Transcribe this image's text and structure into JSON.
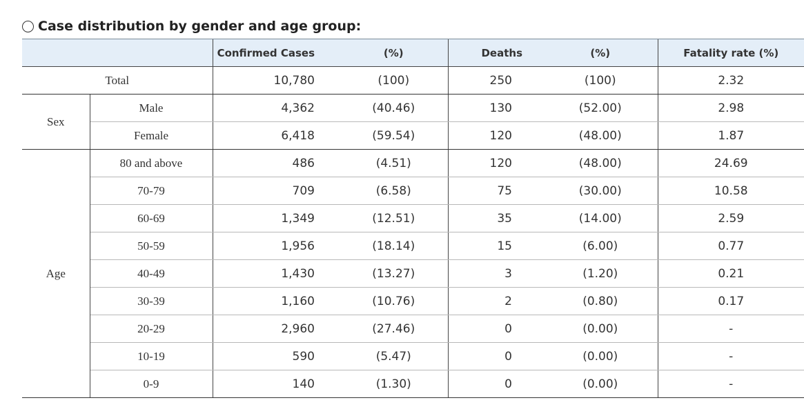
{
  "title": "Case distribution by gender and age group:",
  "headers": {
    "confirmed": "Confirmed Cases",
    "confirmed_pct": "(%)",
    "deaths": "Deaths",
    "deaths_pct": "(%)",
    "fatality": "Fatality rate (%)"
  },
  "groups": {
    "sex": "Sex",
    "age": "Age"
  },
  "rows": {
    "total": {
      "label": "Total",
      "cases": "10,780",
      "cases_pct": "(100)",
      "deaths": "250",
      "deaths_pct": "(100)",
      "fatality": "2.32"
    },
    "male": {
      "label": "Male",
      "cases": "4,362",
      "cases_pct": "(40.46)",
      "deaths": "130",
      "deaths_pct": "(52.00)",
      "fatality": "2.98"
    },
    "female": {
      "label": "Female",
      "cases": "6,418",
      "cases_pct": "(59.54)",
      "deaths": "120",
      "deaths_pct": "(48.00)",
      "fatality": "1.87"
    },
    "a80": {
      "label": "80 and above",
      "cases": "486",
      "cases_pct": "(4.51)",
      "deaths": "120",
      "deaths_pct": "(48.00)",
      "fatality": "24.69"
    },
    "a70": {
      "label": "70-79",
      "cases": "709",
      "cases_pct": "(6.58)",
      "deaths": "75",
      "deaths_pct": "(30.00)",
      "fatality": "10.58"
    },
    "a60": {
      "label": "60-69",
      "cases": "1,349",
      "cases_pct": "(12.51)",
      "deaths": "35",
      "deaths_pct": "(14.00)",
      "fatality": "2.59"
    },
    "a50": {
      "label": "50-59",
      "cases": "1,956",
      "cases_pct": "(18.14)",
      "deaths": "15",
      "deaths_pct": "(6.00)",
      "fatality": "0.77"
    },
    "a40": {
      "label": "40-49",
      "cases": "1,430",
      "cases_pct": "(13.27)",
      "deaths": "3",
      "deaths_pct": "(1.20)",
      "fatality": "0.21"
    },
    "a30": {
      "label": "30-39",
      "cases": "1,160",
      "cases_pct": "(10.76)",
      "deaths": "2",
      "deaths_pct": "(0.80)",
      "fatality": "0.17"
    },
    "a20": {
      "label": "20-29",
      "cases": "2,960",
      "cases_pct": "(27.46)",
      "deaths": "0",
      "deaths_pct": "(0.00)",
      "fatality": "-"
    },
    "a10": {
      "label": "10-19",
      "cases": "590",
      "cases_pct": "(5.47)",
      "deaths": "0",
      "deaths_pct": "(0.00)",
      "fatality": "-"
    },
    "a0": {
      "label": "0-9",
      "cases": "140",
      "cases_pct": "(1.30)",
      "deaths": "0",
      "deaths_pct": "(0.00)",
      "fatality": "-"
    }
  },
  "colors": {
    "header_bg": "#e4eef8",
    "text": "#333333",
    "rule": "#333333"
  }
}
